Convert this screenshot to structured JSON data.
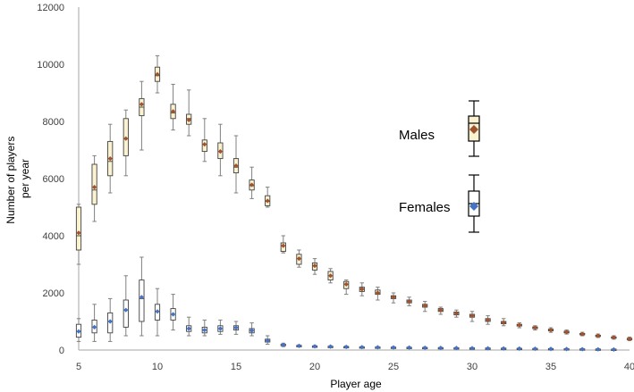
{
  "chart_data": {
    "type": "box",
    "title": "",
    "xlabel": "Player age",
    "ylabel_lines": [
      "Number of players",
      "per year"
    ],
    "xlim": [
      5,
      40
    ],
    "ylim": [
      0,
      12000
    ],
    "x_ticks": [
      5,
      10,
      15,
      20,
      25,
      30,
      35,
      40
    ],
    "y_ticks": [
      0,
      2000,
      4000,
      6000,
      8000,
      10000,
      12000
    ],
    "colors": {
      "male_box_fill": "#fbf2d0",
      "male_marker": "#a0522d",
      "female_box_fill": "#ffffff",
      "female_marker": "#4472c4",
      "box_stroke": "#404040",
      "whisker": "#808080",
      "axis": "#a6a6a6"
    },
    "legend": [
      {
        "name": "Males",
        "fill": "#fbf2d0",
        "marker": "#a0522d"
      },
      {
        "name": "Females",
        "fill": "#ffffff",
        "marker": "#4472c4"
      }
    ],
    "series": [
      {
        "name": "Males",
        "boxes": [
          {
            "age": 5,
            "min": 3000,
            "q1": 3500,
            "median": 4000,
            "q3": 5000,
            "max": 5100,
            "mean": 4100
          },
          {
            "age": 6,
            "min": 4500,
            "q1": 5100,
            "median": 5600,
            "q3": 6500,
            "max": 6800,
            "mean": 5700
          },
          {
            "age": 7,
            "min": 5500,
            "q1": 6100,
            "median": 6600,
            "q3": 7300,
            "max": 7900,
            "mean": 6700
          },
          {
            "age": 8,
            "min": 6100,
            "q1": 6800,
            "median": 7400,
            "q3": 8100,
            "max": 8400,
            "mean": 7400
          },
          {
            "age": 9,
            "min": 7000,
            "q1": 8200,
            "median": 8500,
            "q3": 8800,
            "max": 9400,
            "mean": 8600
          },
          {
            "age": 10,
            "min": 9000,
            "q1": 9400,
            "median": 9600,
            "q3": 9900,
            "max": 10300,
            "mean": 9650
          },
          {
            "age": 11,
            "min": 7700,
            "q1": 8100,
            "median": 8300,
            "q3": 8600,
            "max": 9300,
            "mean": 8350
          },
          {
            "age": 12,
            "min": 7500,
            "q1": 7900,
            "median": 8100,
            "q3": 8250,
            "max": 9100,
            "mean": 8050
          },
          {
            "age": 13,
            "min": 6600,
            "q1": 6950,
            "median": 7200,
            "q3": 7350,
            "max": 8100,
            "mean": 7200
          },
          {
            "age": 14,
            "min": 6100,
            "q1": 6700,
            "median": 6950,
            "q3": 7250,
            "max": 7900,
            "mean": 6950
          },
          {
            "age": 15,
            "min": 5500,
            "q1": 6200,
            "median": 6400,
            "q3": 6700,
            "max": 7500,
            "mean": 6450
          },
          {
            "age": 16,
            "min": 5300,
            "q1": 5600,
            "median": 5750,
            "q3": 5950,
            "max": 6400,
            "mean": 5780
          },
          {
            "age": 17,
            "min": 5000,
            "q1": 5050,
            "median": 5200,
            "q3": 5400,
            "max": 5700,
            "mean": 5220
          },
          {
            "age": 18,
            "min": 3400,
            "q1": 3450,
            "median": 3650,
            "q3": 3750,
            "max": 4000,
            "mean": 3650
          },
          {
            "age": 19,
            "min": 2900,
            "q1": 3000,
            "median": 3200,
            "q3": 3350,
            "max": 3500,
            "mean": 3200
          },
          {
            "age": 20,
            "min": 2650,
            "q1": 2800,
            "median": 2950,
            "q3": 3050,
            "max": 3200,
            "mean": 2950
          },
          {
            "age": 21,
            "min": 2350,
            "q1": 2450,
            "median": 2600,
            "q3": 2750,
            "max": 2850,
            "mean": 2600
          },
          {
            "age": 22,
            "min": 1950,
            "q1": 2150,
            "median": 2300,
            "q3": 2400,
            "max": 2450,
            "mean": 2300
          },
          {
            "age": 23,
            "min": 1900,
            "q1": 2050,
            "median": 2150,
            "q3": 2200,
            "max": 2350,
            "mean": 2130
          },
          {
            "age": 24,
            "min": 1750,
            "q1": 1950,
            "median": 2000,
            "q3": 2100,
            "max": 2200,
            "mean": 2000
          },
          {
            "age": 25,
            "min": 1650,
            "q1": 1800,
            "median": 1850,
            "q3": 1900,
            "max": 2000,
            "mean": 1850
          },
          {
            "age": 26,
            "min": 1550,
            "q1": 1650,
            "median": 1700,
            "q3": 1750,
            "max": 1850,
            "mean": 1700
          },
          {
            "age": 27,
            "min": 1350,
            "q1": 1500,
            "median": 1550,
            "q3": 1600,
            "max": 1700,
            "mean": 1550
          },
          {
            "age": 28,
            "min": 1250,
            "q1": 1350,
            "median": 1400,
            "q3": 1450,
            "max": 1500,
            "mean": 1400
          },
          {
            "age": 29,
            "min": 1150,
            "q1": 1230,
            "median": 1280,
            "q3": 1330,
            "max": 1400,
            "mean": 1280
          },
          {
            "age": 30,
            "min": 1000,
            "q1": 1150,
            "median": 1200,
            "q3": 1250,
            "max": 1350,
            "mean": 1200
          },
          {
            "age": 31,
            "min": 900,
            "q1": 1000,
            "median": 1050,
            "q3": 1100,
            "max": 1200,
            "mean": 1050
          },
          {
            "age": 32,
            "min": 850,
            "q1": 920,
            "median": 960,
            "q3": 1000,
            "max": 1100,
            "mean": 960
          },
          {
            "age": 33,
            "min": 780,
            "q1": 840,
            "median": 870,
            "q3": 900,
            "max": 950,
            "mean": 870
          },
          {
            "age": 34,
            "min": 700,
            "q1": 750,
            "median": 780,
            "q3": 810,
            "max": 850,
            "mean": 780
          },
          {
            "age": 35,
            "min": 620,
            "q1": 670,
            "median": 700,
            "q3": 730,
            "max": 780,
            "mean": 700
          },
          {
            "age": 36,
            "min": 560,
            "q1": 600,
            "median": 630,
            "q3": 660,
            "max": 700,
            "mean": 630
          },
          {
            "age": 37,
            "min": 500,
            "q1": 540,
            "median": 560,
            "q3": 580,
            "max": 620,
            "mean": 560
          },
          {
            "age": 38,
            "min": 440,
            "q1": 480,
            "median": 500,
            "q3": 520,
            "max": 560,
            "mean": 500
          },
          {
            "age": 39,
            "min": 380,
            "q1": 420,
            "median": 440,
            "q3": 460,
            "max": 500,
            "mean": 440
          },
          {
            "age": 40,
            "min": 330,
            "q1": 370,
            "median": 390,
            "q3": 410,
            "max": 450,
            "mean": 390
          }
        ]
      },
      {
        "name": "Females",
        "boxes": [
          {
            "age": 5,
            "min": 300,
            "q1": 450,
            "median": 650,
            "q3": 900,
            "max": 1100,
            "mean": 650
          },
          {
            "age": 6,
            "min": 300,
            "q1": 600,
            "median": 800,
            "q3": 1050,
            "max": 1600,
            "mean": 800
          },
          {
            "age": 7,
            "min": 300,
            "q1": 600,
            "median": 1000,
            "q3": 1300,
            "max": 1800,
            "mean": 1000
          },
          {
            "age": 8,
            "min": 500,
            "q1": 800,
            "median": 1400,
            "q3": 1750,
            "max": 2600,
            "mean": 1400
          },
          {
            "age": 9,
            "min": 500,
            "q1": 1000,
            "median": 1800,
            "q3": 2450,
            "max": 3250,
            "mean": 1850
          },
          {
            "age": 10,
            "min": 500,
            "q1": 1050,
            "median": 1350,
            "q3": 1600,
            "max": 2150,
            "mean": 1350
          },
          {
            "age": 11,
            "min": 700,
            "q1": 1050,
            "median": 1250,
            "q3": 1450,
            "max": 1950,
            "mean": 1250
          },
          {
            "age": 12,
            "min": 500,
            "q1": 650,
            "median": 750,
            "q3": 850,
            "max": 1150,
            "mean": 750
          },
          {
            "age": 13,
            "min": 500,
            "q1": 600,
            "median": 700,
            "q3": 800,
            "max": 1050,
            "mean": 700
          },
          {
            "age": 14,
            "min": 550,
            "q1": 650,
            "median": 750,
            "q3": 850,
            "max": 1050,
            "mean": 750
          },
          {
            "age": 15,
            "min": 550,
            "q1": 700,
            "median": 780,
            "q3": 850,
            "max": 1000,
            "mean": 780
          },
          {
            "age": 16,
            "min": 500,
            "q1": 600,
            "median": 680,
            "q3": 750,
            "max": 950,
            "mean": 680
          },
          {
            "age": 17,
            "min": 200,
            "q1": 280,
            "median": 330,
            "q3": 380,
            "max": 500,
            "mean": 330
          },
          {
            "age": 18,
            "min": 120,
            "q1": 160,
            "median": 180,
            "q3": 200,
            "max": 240,
            "mean": 180
          },
          {
            "age": 19,
            "min": 110,
            "q1": 130,
            "median": 145,
            "q3": 160,
            "max": 180,
            "mean": 145
          },
          {
            "age": 20,
            "min": 100,
            "q1": 120,
            "median": 130,
            "q3": 140,
            "max": 160,
            "mean": 130
          },
          {
            "age": 21,
            "min": 90,
            "q1": 110,
            "median": 120,
            "q3": 130,
            "max": 150,
            "mean": 120
          },
          {
            "age": 22,
            "min": 80,
            "q1": 100,
            "median": 110,
            "q3": 120,
            "max": 140,
            "mean": 110
          },
          {
            "age": 23,
            "min": 75,
            "q1": 90,
            "median": 100,
            "q3": 110,
            "max": 125,
            "mean": 100
          },
          {
            "age": 24,
            "min": 70,
            "q1": 85,
            "median": 95,
            "q3": 105,
            "max": 120,
            "mean": 95
          },
          {
            "age": 25,
            "min": 65,
            "q1": 80,
            "median": 90,
            "q3": 100,
            "max": 115,
            "mean": 90
          },
          {
            "age": 26,
            "min": 60,
            "q1": 75,
            "median": 85,
            "q3": 95,
            "max": 110,
            "mean": 85
          },
          {
            "age": 27,
            "min": 55,
            "q1": 70,
            "median": 80,
            "q3": 90,
            "max": 100,
            "mean": 80
          },
          {
            "age": 28,
            "min": 50,
            "q1": 65,
            "median": 75,
            "q3": 85,
            "max": 95,
            "mean": 75
          },
          {
            "age": 29,
            "min": 45,
            "q1": 60,
            "median": 70,
            "q3": 80,
            "max": 90,
            "mean": 70
          },
          {
            "age": 30,
            "min": 40,
            "q1": 55,
            "median": 65,
            "q3": 75,
            "max": 85,
            "mean": 65
          },
          {
            "age": 31,
            "min": 35,
            "q1": 50,
            "median": 60,
            "q3": 70,
            "max": 80,
            "mean": 60
          },
          {
            "age": 32,
            "min": 30,
            "q1": 45,
            "median": 55,
            "q3": 65,
            "max": 75,
            "mean": 55
          },
          {
            "age": 33,
            "min": 25,
            "q1": 40,
            "median": 50,
            "q3": 60,
            "max": 70,
            "mean": 50
          },
          {
            "age": 34,
            "min": 20,
            "q1": 35,
            "median": 45,
            "q3": 55,
            "max": 65,
            "mean": 45
          },
          {
            "age": 35,
            "min": 15,
            "q1": 30,
            "median": 40,
            "q3": 50,
            "max": 60,
            "mean": 40
          },
          {
            "age": 36,
            "min": 10,
            "q1": 25,
            "median": 35,
            "q3": 45,
            "max": 55,
            "mean": 35
          },
          {
            "age": 37,
            "min": 8,
            "q1": 20,
            "median": 30,
            "q3": 40,
            "max": 50,
            "mean": 30
          },
          {
            "age": 38,
            "min": 6,
            "q1": 15,
            "median": 25,
            "q3": 35,
            "max": 45,
            "mean": 25
          },
          {
            "age": 39,
            "min": 4,
            "q1": 12,
            "median": 20,
            "q3": 30,
            "max": 40,
            "mean": 20
          }
        ]
      }
    ]
  }
}
